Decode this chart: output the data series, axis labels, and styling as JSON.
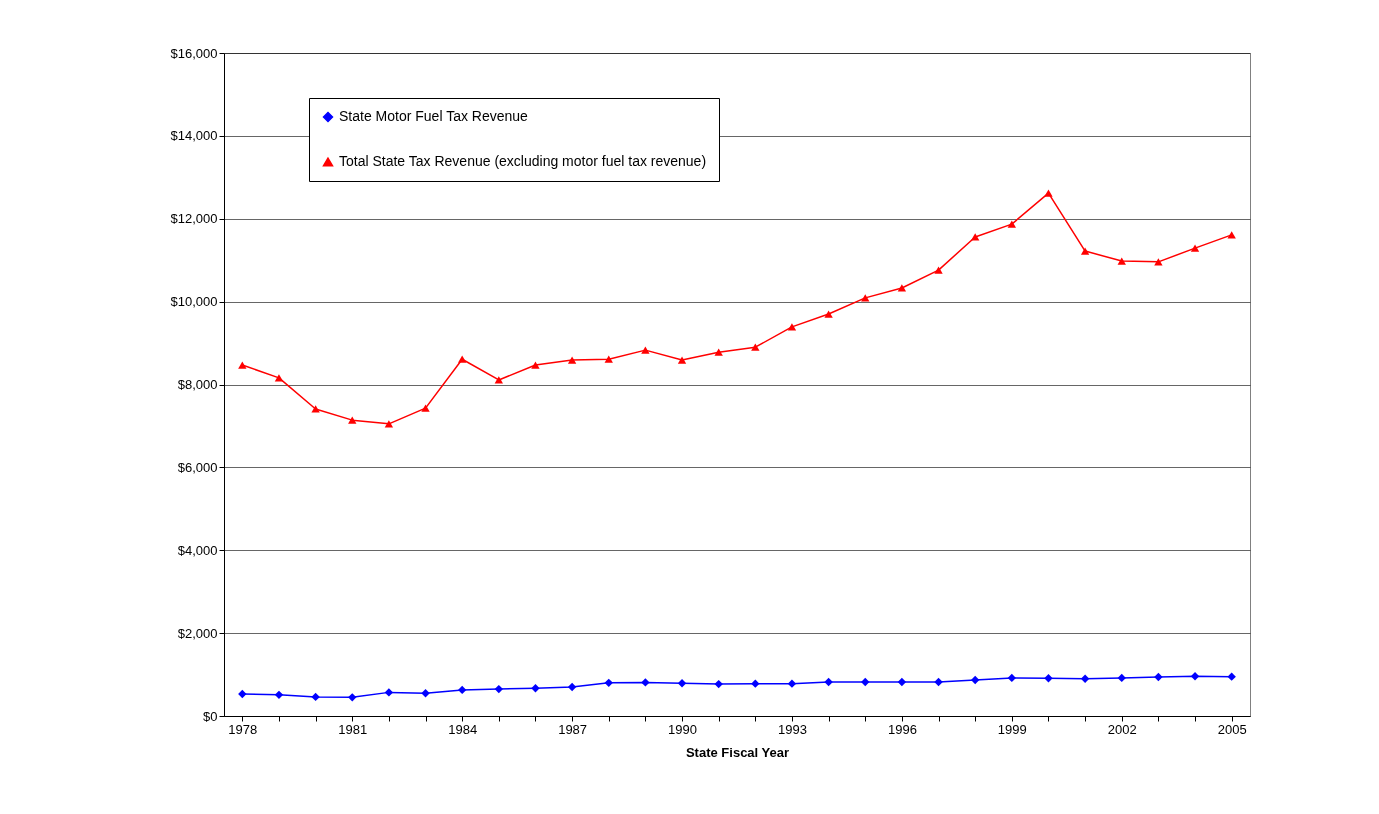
{
  "chart_data": {
    "type": "line",
    "xlabel": "State Fiscal Year",
    "categories": [
      "1978",
      null,
      null,
      "1981",
      null,
      null,
      "1984",
      null,
      null,
      "1987",
      null,
      null,
      "1990",
      null,
      null,
      "1993",
      null,
      null,
      "1996",
      null,
      null,
      "1999",
      null,
      null,
      "2002",
      null,
      null,
      "2005"
    ],
    "series": [
      {
        "name": "State Motor Fuel Tax Revenue",
        "color": "#0000ff",
        "marker": "diamond",
        "values": [
          530,
          510,
          460,
          450,
          570,
          550,
          630,
          650,
          670,
          700,
          800,
          810,
          790,
          770,
          780,
          780,
          820,
          820,
          820,
          820,
          870,
          920,
          910,
          900,
          920,
          940,
          960,
          950
        ]
      },
      {
        "name": "Total State Tax Revenue (excluding motor fuel tax revenue)",
        "color": "#ff0000",
        "marker": "triangle",
        "values": [
          8470,
          8160,
          7410,
          7140,
          7050,
          7430,
          8610,
          8110,
          8470,
          8590,
          8610,
          8830,
          8590,
          8780,
          8900,
          9390,
          9700,
          10090,
          10330,
          10760,
          11560,
          11870,
          12620,
          11220,
          10980,
          10960,
          11290,
          11610
        ]
      }
    ],
    "ylim": [
      0,
      16000
    ],
    "yticks": [
      {
        "value": 0,
        "label": "$0"
      },
      {
        "value": 2000,
        "label": "$2,000"
      },
      {
        "value": 4000,
        "label": "$4,000"
      },
      {
        "value": 6000,
        "label": "$6,000"
      },
      {
        "value": 8000,
        "label": "$8,000"
      },
      {
        "value": 10000,
        "label": "$10,000"
      },
      {
        "value": 12000,
        "label": "$12,000"
      },
      {
        "value": 14000,
        "label": "$14,000"
      },
      {
        "value": 16000,
        "label": "$16,000"
      }
    ],
    "grid": "y",
    "legend": "top left",
    "line_style": "solid"
  }
}
